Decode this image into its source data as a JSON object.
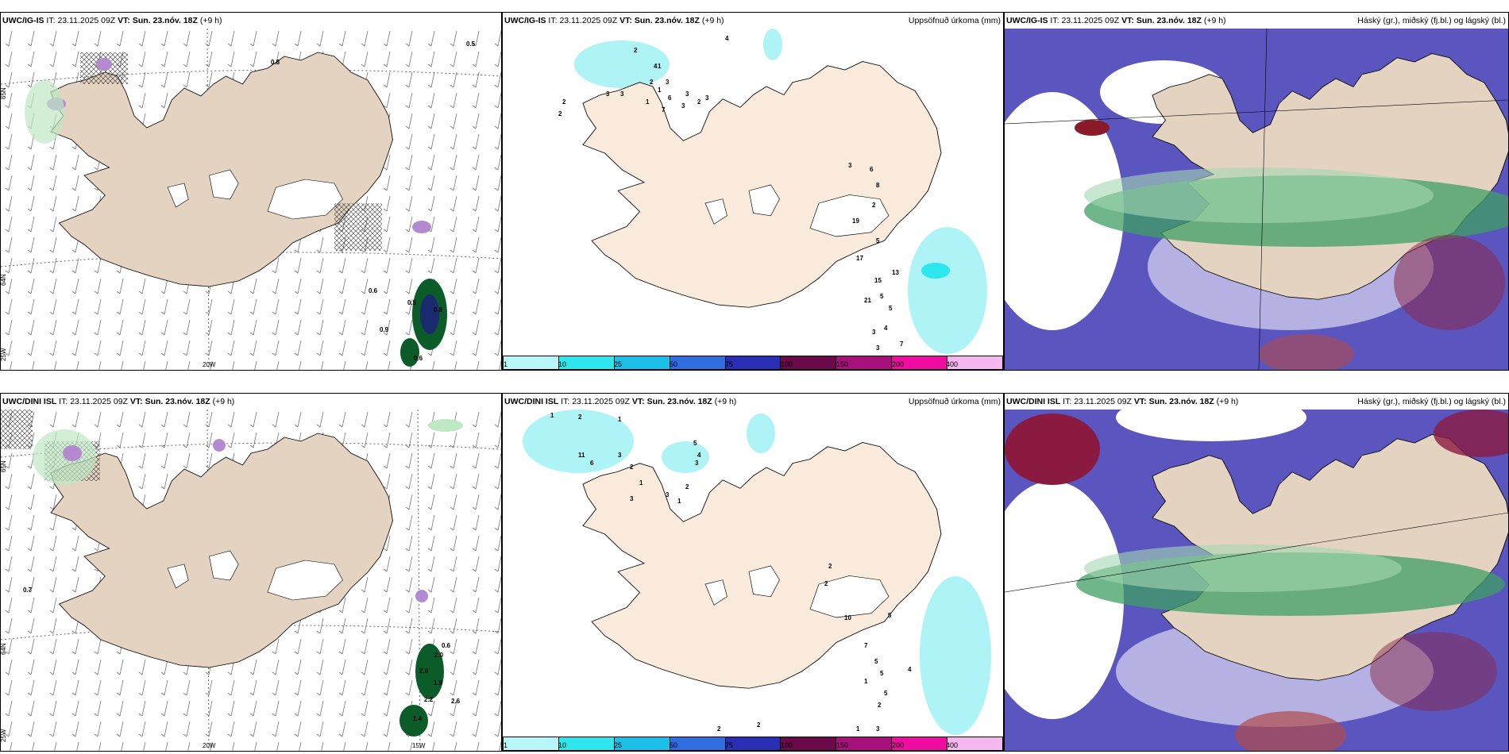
{
  "rows": [
    {
      "model": "UWC/IG-IS",
      "it_label": "IT:",
      "it_value": "23.11.2025 09Z",
      "vt_label": "VT:",
      "vt_value": "Sun. 23.nóv. 18Z",
      "lead": "(+9 h)",
      "left_values": [
        "0.8",
        "0.5",
        "0.6",
        "0.5",
        "0.8",
        "0.9",
        "0.6"
      ],
      "middle_values": [
        "2",
        "1",
        "2",
        "4",
        "1",
        "6",
        "3",
        "3",
        "7",
        "3",
        "2",
        "3",
        "1",
        "4",
        "3",
        "3",
        "2",
        "2",
        "3",
        "6",
        "8",
        "2",
        "19",
        "5",
        "17",
        "15",
        "21",
        "5",
        "5",
        "3",
        "3",
        "13",
        "4",
        "7"
      ]
    },
    {
      "model": "UWC/DINI ISL",
      "it_label": "IT:",
      "it_value": "23.11.2025 09Z",
      "vt_label": "VT:",
      "vt_value": "Sun. 23.nóv. 18Z",
      "lead": "(+9 h)",
      "left_values": [
        "0.7",
        "0.6",
        "2.0",
        "2.0",
        "1.9",
        "2.2",
        "2.6",
        "1.4"
      ],
      "middle_values": [
        "1",
        "2",
        "1",
        "11",
        "6",
        "3",
        "2",
        "1",
        "3",
        "5",
        "4",
        "3",
        "2",
        "3",
        "1",
        "2",
        "2",
        "10",
        "5",
        "7",
        "5",
        "5",
        "1",
        "4",
        "5",
        "2",
        "3",
        "1",
        "2",
        "2"
      ]
    }
  ],
  "middle_title": "Uppsöfnuð úrkoma (mm)",
  "right_title": "Háský (gr.), miðský (fj.bl.) og lágský (bl.)",
  "colorbar": {
    "labels": [
      "1",
      "10",
      "25",
      "50",
      "75",
      "100",
      "150",
      "200",
      "400"
    ],
    "colors": [
      "#b8f6f8",
      "#2de6ee",
      "#1cbfe8",
      "#2f6de0",
      "#2a2eb4",
      "#6a0a4a",
      "#a8107c",
      "#f00ca0",
      "#f6b6f0"
    ]
  },
  "axis_labels": {
    "top": {
      "n65": "65N",
      "n64": "64N",
      "w25": "25W",
      "w20": "20W"
    },
    "bottom": {
      "n65": "65N",
      "n64": "64N",
      "w25": "25W",
      "w20": "20W",
      "w15": "15W"
    }
  },
  "colors": {
    "land": "#e5d3c1",
    "middle_land": "#fbebdd",
    "precip": "#aef3f6",
    "cloud_high": "#3f9f64",
    "cloud_mid": "#a4d7b0",
    "cloud_low": "#5b55c0"
  }
}
